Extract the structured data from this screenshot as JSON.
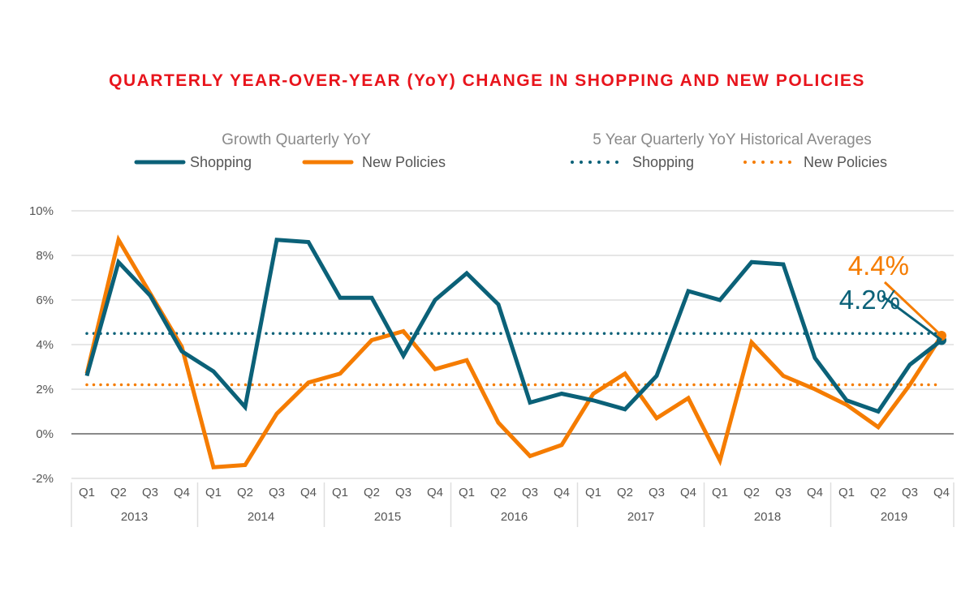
{
  "chart_data": {
    "type": "line",
    "title": "QUARTERLY YEAR-OVER-YEAR (YoY) CHANGE IN SHOPPING AND NEW POLICIES",
    "legend": {
      "group1_title": "Growth Quarterly YoY",
      "group2_title": "5 Year Quarterly YoY Historical Averages",
      "placement": "top"
    },
    "years": [
      "2013",
      "2014",
      "2015",
      "2016",
      "2017",
      "2018",
      "2019"
    ],
    "quarters": [
      "Q1",
      "Q2",
      "Q3",
      "Q4"
    ],
    "ylim": [
      -2,
      10
    ],
    "yticks": [
      -2,
      0,
      2,
      4,
      6,
      8,
      10
    ],
    "ytick_labels": [
      "-2%",
      "0%",
      "2%",
      "4%",
      "6%",
      "8%",
      "10%"
    ],
    "grid": true,
    "series": [
      {
        "name": "Shopping",
        "color": "#0b6178",
        "style": "solid",
        "values": [
          2.6,
          7.7,
          6.2,
          3.7,
          2.8,
          1.2,
          8.7,
          8.6,
          6.1,
          6.1,
          3.5,
          6.0,
          7.2,
          5.8,
          1.4,
          1.8,
          1.5,
          1.1,
          2.6,
          6.4,
          6.0,
          7.7,
          7.6,
          3.4,
          1.5,
          1.0,
          3.1,
          4.2
        ]
      },
      {
        "name": "New Policies",
        "color": "#f57c00",
        "style": "solid",
        "values": [
          2.7,
          8.7,
          6.3,
          3.9,
          -1.5,
          -1.4,
          0.9,
          2.3,
          2.7,
          4.2,
          4.6,
          2.9,
          3.3,
          0.5,
          -1.0,
          -0.5,
          1.8,
          2.7,
          0.7,
          1.6,
          -1.2,
          4.1,
          2.6,
          2.0,
          1.3,
          0.3,
          2.2,
          4.4
        ]
      }
    ],
    "averages": [
      {
        "name": "Shopping",
        "color": "#0b6178",
        "style": "dotted",
        "value": 4.5
      },
      {
        "name": "New Policies",
        "color": "#f57c00",
        "style": "dotted",
        "value": 2.2
      }
    ],
    "annotations": [
      {
        "text": "4.4%",
        "color": "#f57c00"
      },
      {
        "text": "4.2%",
        "color": "#0b6178"
      }
    ]
  }
}
